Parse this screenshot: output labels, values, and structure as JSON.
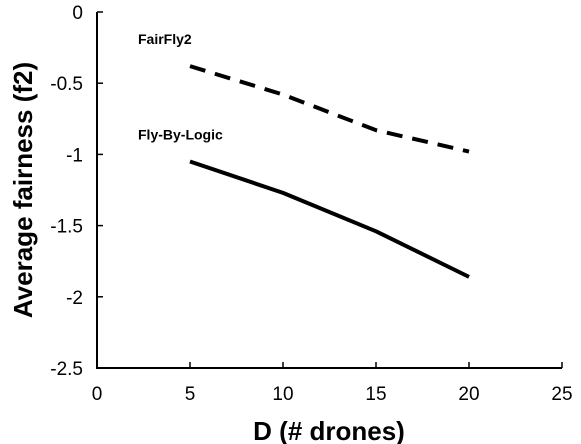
{
  "chart_data": {
    "type": "line",
    "title": "",
    "xlabel": "D (# drones)",
    "ylabel": "Average fairness (f2)",
    "xlim": [
      0,
      25
    ],
    "ylim": [
      -2.5,
      0
    ],
    "xticks": [
      0,
      5,
      10,
      15,
      20,
      25
    ],
    "yticks": [
      0,
      -0.5,
      -1,
      -1.5,
      -2,
      -2.5
    ],
    "xtick_labels": [
      "0",
      "5",
      "10",
      "15",
      "20",
      "25"
    ],
    "ytick_labels": [
      "0",
      "-0.5",
      "-1",
      "-1.5",
      "-2",
      "-2.5"
    ],
    "grid": false,
    "legend": "inline labels",
    "series": [
      {
        "name": "FairFly2",
        "style": "dashed",
        "color": "#000000",
        "x": [
          5,
          10,
          15,
          20
        ],
        "y": [
          -0.38,
          -0.58,
          -0.83,
          -0.98
        ]
      },
      {
        "name": "Fly-By-Logic",
        "style": "solid",
        "color": "#000000",
        "x": [
          5,
          10,
          15,
          20
        ],
        "y": [
          -1.05,
          -1.27,
          -1.54,
          -1.86
        ]
      }
    ]
  }
}
